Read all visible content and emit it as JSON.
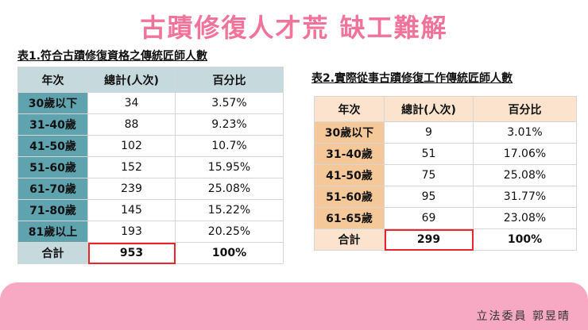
{
  "title": "古蹟修復人才荒 缺工難解",
  "chart_data": [
    {
      "type": "table",
      "title": "表1.符合古蹟修復資格之傳統匠師人數",
      "columns": [
        "年次",
        "總計(人次)",
        "百分比"
      ],
      "rows": [
        {
          "label": "30歲以下",
          "count": "34",
          "percent": "3.57%"
        },
        {
          "label": "31-40歲",
          "count": "88",
          "percent": "9.23%"
        },
        {
          "label": "41-50歲",
          "count": "102",
          "percent": "10.7%"
        },
        {
          "label": "51-60歲",
          "count": "152",
          "percent": "15.95%"
        },
        {
          "label": "61-70歲",
          "count": "239",
          "percent": "25.08%"
        },
        {
          "label": "71-80歲",
          "count": "145",
          "percent": "15.22%"
        },
        {
          "label": "81歲以上",
          "count": "193",
          "percent": "20.25%"
        }
      ],
      "total": {
        "label": "合計",
        "count": "953",
        "percent": "100%"
      }
    },
    {
      "type": "table",
      "title": "表2.實際從事古蹟修復工作傳統匠師人數",
      "columns": [
        "年次",
        "總計(人次)",
        "百分比"
      ],
      "rows": [
        {
          "label": "30歲以下",
          "count": "9",
          "percent": "3.01%"
        },
        {
          "label": "31-40歲",
          "count": "51",
          "percent": "17.06%"
        },
        {
          "label": "41-50歲",
          "count": "75",
          "percent": "25.08%"
        },
        {
          "label": "51-60歲",
          "count": "95",
          "percent": "31.77%"
        },
        {
          "label": "61-65歲",
          "count": "69",
          "percent": "23.08%"
        }
      ],
      "total": {
        "label": "合計",
        "count": "299",
        "percent": "100%"
      }
    }
  ],
  "signature": "立法委員 郭昱晴",
  "colors": {
    "title": "#f0739b",
    "table1_header": "#c6d9dc",
    "table1_label": "#5fa3ae",
    "table2_header": "#fbe3cd",
    "table2_label": "#f5c89a",
    "highlight": "#e8262b",
    "footer_band": "#f7a8c2"
  }
}
